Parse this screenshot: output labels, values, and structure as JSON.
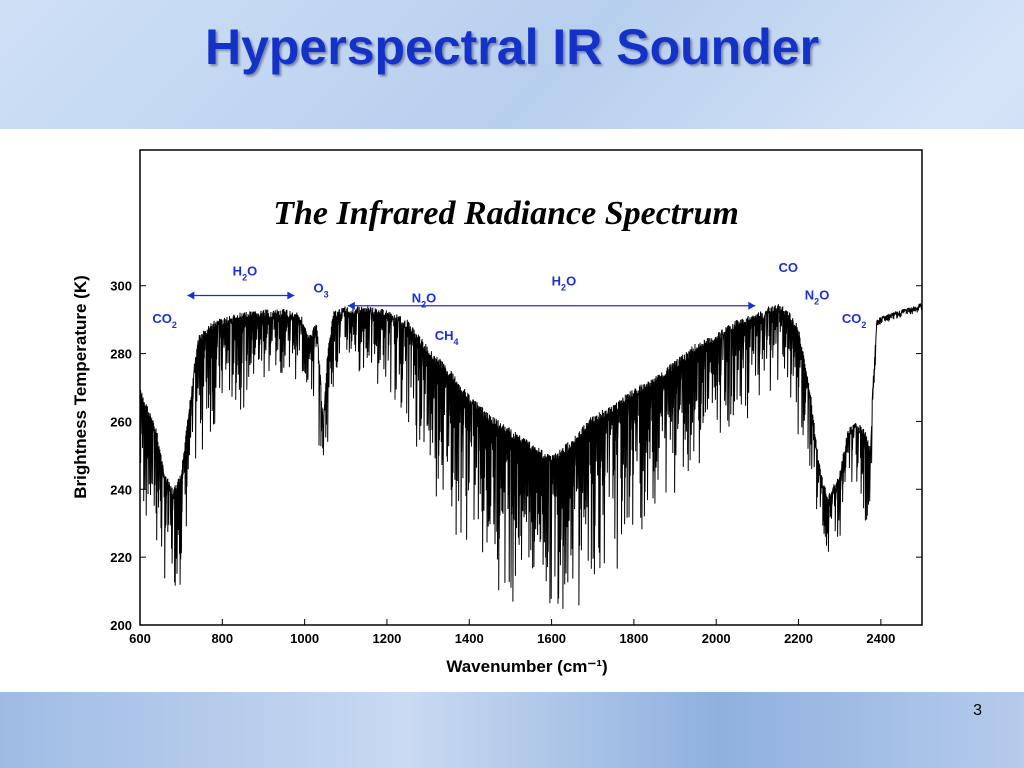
{
  "slide": {
    "title": "Hyperspectral IR Sounder",
    "number": "3"
  },
  "chart_data": {
    "type": "line",
    "title": "The Infrared Radiance Spectrum",
    "xlabel": "Wavenumber (cm⁻¹)",
    "ylabel": "Brightness Temperature (K)",
    "xlim": [
      600,
      2500
    ],
    "ylim": [
      200,
      340
    ],
    "xticks": [
      "600",
      "800",
      "1000",
      "1200",
      "1400",
      "1600",
      "1800",
      "2000",
      "2200",
      "2400"
    ],
    "yticks": [
      "200",
      "220",
      "240",
      "260",
      "280",
      "300"
    ],
    "grid": false,
    "series_color": "#000000",
    "annotation_color": "#1a2fd6",
    "envelope": {
      "x": [
        600,
        640,
        660,
        680,
        700,
        720,
        740,
        780,
        840,
        900,
        960,
        990,
        1010,
        1030,
        1045,
        1055,
        1070,
        1100,
        1150,
        1200,
        1250,
        1300,
        1350,
        1400,
        1450,
        1500,
        1550,
        1600,
        1650,
        1700,
        1750,
        1800,
        1850,
        1900,
        1950,
        2000,
        2050,
        2100,
        2150,
        2180,
        2200,
        2230,
        2250,
        2270,
        2300,
        2320,
        2340,
        2360,
        2375,
        2380,
        2390,
        2400,
        2450,
        2500
      ],
      "upper": [
        270,
        258,
        245,
        240,
        245,
        265,
        285,
        290,
        292,
        293,
        293,
        292,
        285,
        290,
        260,
        280,
        293,
        294,
        294,
        293,
        290,
        282,
        276,
        268,
        262,
        258,
        254,
        250,
        255,
        262,
        265,
        270,
        273,
        278,
        283,
        286,
        290,
        292,
        295,
        292,
        288,
        268,
        248,
        238,
        245,
        258,
        260,
        258,
        252,
        270,
        290,
        291,
        293,
        295
      ],
      "lower": [
        232,
        215,
        210,
        207,
        212,
        228,
        245,
        255,
        262,
        268,
        275,
        270,
        265,
        255,
        245,
        252,
        270,
        275,
        272,
        268,
        258,
        240,
        228,
        220,
        212,
        206,
        202,
        201,
        203,
        208,
        215,
        222,
        230,
        238,
        246,
        252,
        258,
        262,
        268,
        262,
        255,
        240,
        226,
        216,
        222,
        236,
        238,
        232,
        215,
        260,
        285,
        289,
        291,
        293
      ]
    },
    "annotations": [
      {
        "label": "CO",
        "sub": "2",
        "x": 660,
        "y": 289
      },
      {
        "label": "H",
        "sub": "2",
        "tail": "O",
        "x": 855,
        "y": 303,
        "arrow": [
          715,
          975
        ]
      },
      {
        "label": "O",
        "sub": "3",
        "x": 1040,
        "y": 298
      },
      {
        "label": "H",
        "sub": "2",
        "tail": "O",
        "x": 1630,
        "y": 300,
        "arrow": [
          1105,
          2095
        ]
      },
      {
        "label": "N",
        "sub": "2",
        "tail": "O",
        "x": 1290,
        "y": 295
      },
      {
        "label": "CH",
        "sub": "4",
        "x": 1345,
        "y": 284
      },
      {
        "label": "CO",
        "sub": "",
        "x": 2175,
        "y": 304
      },
      {
        "label": "N",
        "sub": "2",
        "tail": "O",
        "x": 2245,
        "y": 296
      },
      {
        "label": "CO",
        "sub": "2",
        "x": 2335,
        "y": 289
      }
    ]
  }
}
